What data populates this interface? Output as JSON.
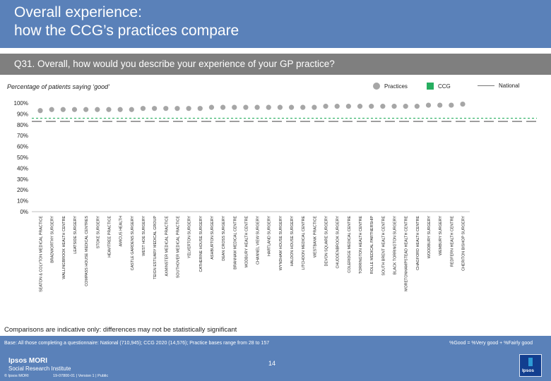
{
  "header": {
    "title_line1": "Overall experience:",
    "title_line2": "how the CCG’s practices compare"
  },
  "question": "Q31. Overall, how would you describe your experience of your GP practice?",
  "subtitle": "Percentage of patients saying ‘good’",
  "legend": {
    "practices": "Practices",
    "ccg": "CCG",
    "national": "National"
  },
  "colors": {
    "practice_dot": "#a6a6a6",
    "ccg_marker": "#27ae60",
    "national_line": "#808080",
    "header_bg": "#5a81b9",
    "question_bg": "#7f7f7f"
  },
  "chart_data": {
    "type": "scatter",
    "y_tick_labels": [
      "0%",
      "10%",
      "20%",
      "30%",
      "40%",
      "50%",
      "60%",
      "70%",
      "80%",
      "90%",
      "100%"
    ],
    "ylim": [
      0,
      100
    ],
    "categories": [
      "SEATON & COLYTON MEDICAL PRACTICE",
      "BRADWORTHY SURGERY",
      "WALLINGBROOK HEALTH CENTRE",
      "LEATSIDE SURGERY",
      "COMPASS HOUSE MEDICAL CENTRES",
      "STOKE SURGERY",
      "HEAVITREE PRACTICE",
      "AMICUS HEALTH",
      "CASTLE GARDENS SURGERY",
      "WEST HOE SURGERY",
      "TEIGN ESTUARY MEDICAL GROUP",
      "AXMINSTER MEDICAL PRACTICE",
      "SOUTHOVER MEDICAL PRACTICE",
      "YELVERTON SURGERY",
      "CATHERINE HOUSE SURGERY",
      "ASHBURTON SURGERY",
      "DEAN CROSS SURGERY",
      "BRANNAM MEDICAL CENTRE",
      "MODBURY HEALTH CENTRE",
      "CHANNEL VIEW SURGERY",
      "HARTLAND SURGERY",
      "WYNDHAM HOUSE SURGERY",
      "HALDON HOUSE SURGERY",
      "LITCHDON MEDICAL CENTRE",
      "WESTBANK PRACTICE",
      "DEVON SQUARE SURGERY",
      "CHUDDENBROOK SURGERY",
      "COLERIDGE MEDICAL CENTRE",
      "TORRINGTON HEALTH CENTRE",
      "ROLLE MEDICAL PARTNERSHIP",
      "SOUTH BRENT HEALTH CENTRE",
      "BLACK TORRINGTON SURGERY",
      "MORETONHAMPSTEAD HEALTH CENTRE",
      "CHAGFORD HEALTH CENTRE",
      "WOODBURY SURGERY",
      "WEMBURY SURGERY",
      "REDFERN HEALTH CENTRE",
      "CHERITON BISHOP SURGERY"
    ],
    "series": [
      {
        "name": "Practices",
        "values": [
          93,
          94,
          94,
          94,
          94,
          94,
          94,
          94,
          94,
          95,
          95,
          95,
          95,
          95,
          95,
          96,
          96,
          96,
          96,
          96,
          96,
          96,
          96,
          96,
          96,
          97,
          97,
          97,
          97,
          97,
          97,
          97,
          97,
          97,
          98,
          98,
          98,
          99
        ]
      }
    ],
    "ccg_value": 86,
    "national_value": 83,
    "grid": false
  },
  "notes": {
    "disclaimer": "Comparisons are indicative only: differences may not be statistically significant",
    "base": "Base: All those completing a questionnaire: National (710,945); CCG 2020 (14,576); Practice bases range from 28 to 157",
    "good_definition": "%Good = %Very good + %Fairly good"
  },
  "footer": {
    "page_number": "14",
    "brand_line1": "Ipsos MORI",
    "brand_line2": "Social Research Institute",
    "copyright": "© Ipsos MORI",
    "job_ref": "19-07800-01 | Version 1 | Public",
    "logo_text": "Ipsos"
  }
}
